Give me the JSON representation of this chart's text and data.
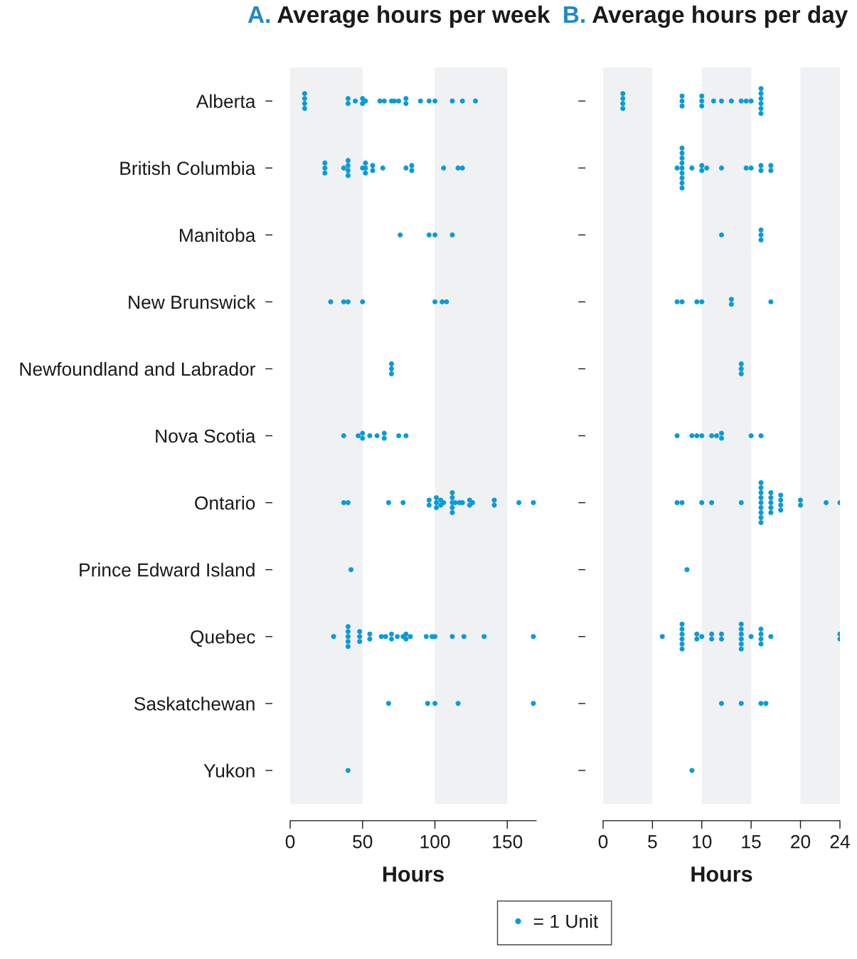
{
  "chart_data": [
    {
      "type": "scatter",
      "title": "A. Average hours per week",
      "xlabel": "Hours",
      "orientation": "horizontal",
      "categories": [
        "Alberta",
        "British Columbia",
        "Manitoba",
        "New Brunswick",
        "Newfoundland and Labrador",
        "Nova Scotia",
        "Ontario",
        "Prince Edward Island",
        "Quebec",
        "Saskatchewan",
        "Yukon"
      ],
      "series": [
        {
          "name": "= 1 Unit",
          "color": "#0b9bd7",
          "x": [
            "Alberta",
            "Alberta",
            "Alberta",
            "Alberta",
            "Alberta",
            "Alberta",
            "Alberta",
            "Alberta",
            "Alberta",
            "Alberta",
            "Alberta",
            "Alberta",
            "Alberta",
            "Alberta",
            "Alberta",
            "Alberta",
            "Alberta",
            "Alberta",
            "Alberta",
            "Alberta",
            "Alberta",
            "Alberta",
            "Alberta",
            "British Columbia",
            "British Columbia",
            "British Columbia",
            "British Columbia",
            "British Columbia",
            "British Columbia",
            "British Columbia",
            "British Columbia",
            "British Columbia",
            "British Columbia",
            "British Columbia",
            "British Columbia",
            "British Columbia",
            "British Columbia",
            "British Columbia",
            "British Columbia",
            "British Columbia",
            "British Columbia",
            "British Columbia",
            "British Columbia",
            "British Columbia",
            "Manitoba",
            "Manitoba",
            "Manitoba",
            "Manitoba",
            "New Brunswick",
            "New Brunswick",
            "New Brunswick",
            "New Brunswick",
            "New Brunswick",
            "New Brunswick",
            "New Brunswick",
            "Newfoundland and Labrador",
            "Newfoundland and Labrador",
            "Newfoundland and Labrador",
            "Nova Scotia",
            "Nova Scotia",
            "Nova Scotia",
            "Nova Scotia",
            "Nova Scotia",
            "Nova Scotia",
            "Nova Scotia",
            "Nova Scotia",
            "Nova Scotia",
            "Nova Scotia",
            "Ontario",
            "Ontario",
            "Ontario",
            "Ontario",
            "Ontario",
            "Ontario",
            "Ontario",
            "Ontario",
            "Ontario",
            "Ontario",
            "Ontario",
            "Ontario",
            "Ontario",
            "Ontario",
            "Ontario",
            "Ontario",
            "Ontario",
            "Ontario",
            "Ontario",
            "Ontario",
            "Ontario",
            "Ontario",
            "Ontario",
            "Ontario",
            "Ontario",
            "Ontario",
            "Ontario",
            "Prince Edward Island",
            "Quebec",
            "Quebec",
            "Quebec",
            "Quebec",
            "Quebec",
            "Quebec",
            "Quebec",
            "Quebec",
            "Quebec",
            "Quebec",
            "Quebec",
            "Quebec",
            "Quebec",
            "Quebec",
            "Quebec",
            "Quebec",
            "Quebec",
            "Quebec",
            "Quebec",
            "Quebec",
            "Quebec",
            "Quebec",
            "Quebec",
            "Quebec",
            "Quebec",
            "Quebec",
            "Quebec",
            "Saskatchewan",
            "Saskatchewan",
            "Saskatchewan",
            "Saskatchewan",
            "Saskatchewan",
            "Yukon"
          ],
          "values": [
            10,
            10,
            10,
            10,
            40,
            40,
            45,
            50,
            50,
            52,
            62,
            65,
            70,
            72,
            75,
            80,
            80,
            90,
            96,
            100,
            112,
            119,
            128,
            24,
            24,
            24,
            37,
            40,
            40,
            40,
            40,
            50,
            52,
            52,
            52,
            57,
            57,
            64,
            80,
            84,
            84,
            106,
            116,
            119,
            76,
            96,
            100,
            112,
            28,
            37,
            40,
            50,
            100,
            105,
            108,
            70,
            70,
            70,
            37,
            47,
            50,
            50,
            55,
            60,
            65,
            65,
            75,
            80,
            37,
            40,
            68,
            78,
            96,
            96,
            101,
            101,
            101,
            104,
            104,
            106,
            112,
            112,
            112,
            112,
            112,
            114,
            117,
            119,
            124,
            124,
            126,
            141,
            141,
            158,
            168,
            42,
            30,
            40,
            40,
            40,
            40,
            40,
            48,
            48,
            48,
            55,
            55,
            63,
            66,
            70,
            70,
            74,
            78,
            80,
            80,
            83,
            94,
            98,
            100,
            112,
            120,
            134,
            168,
            68,
            95,
            100,
            116,
            168,
            40
          ]
        }
      ],
      "xlim": [
        0,
        170
      ],
      "xticks": [
        0,
        50,
        100,
        150
      ],
      "marker": "circle",
      "grid": false,
      "legend": "bottom",
      "bands": [
        {
          "axis": "x",
          "from": 0,
          "to": 50,
          "color": "#f0f1f3"
        },
        {
          "axis": "x",
          "from": 100,
          "to": 150,
          "color": "#f0f1f3"
        }
      ]
    },
    {
      "type": "scatter",
      "title": "B. Average hours per day",
      "xlabel": "Hours",
      "orientation": "horizontal",
      "tick_labels": "x",
      "categories": [
        "Alberta",
        "British Columbia",
        "Manitoba",
        "New Brunswick",
        "Newfoundland and Labrador",
        "Nova Scotia",
        "Ontario",
        "Prince Edward Island",
        "Quebec",
        "Saskatchewan",
        "Yukon"
      ],
      "series": [
        {
          "color": "#0b9bd7",
          "x": [
            "Alberta",
            "Alberta",
            "Alberta",
            "Alberta",
            "Alberta",
            "Alberta",
            "Alberta",
            "Alberta",
            "Alberta",
            "Alberta",
            "Alberta",
            "Alberta",
            "Alberta",
            "Alberta",
            "Alberta",
            "Alberta",
            "Alberta",
            "Alberta",
            "Alberta",
            "Alberta",
            "Alberta",
            "Alberta",
            "British Columbia",
            "British Columbia",
            "British Columbia",
            "British Columbia",
            "British Columbia",
            "British Columbia",
            "British Columbia",
            "British Columbia",
            "British Columbia",
            "British Columbia",
            "British Columbia",
            "British Columbia",
            "British Columbia",
            "British Columbia",
            "British Columbia",
            "British Columbia",
            "British Columbia",
            "British Columbia",
            "British Columbia",
            "British Columbia",
            "British Columbia",
            "Manitoba",
            "Manitoba",
            "Manitoba",
            "Manitoba",
            "New Brunswick",
            "New Brunswick",
            "New Brunswick",
            "New Brunswick",
            "New Brunswick",
            "New Brunswick",
            "New Brunswick",
            "Newfoundland and Labrador",
            "Newfoundland and Labrador",
            "Newfoundland and Labrador",
            "Nova Scotia",
            "Nova Scotia",
            "Nova Scotia",
            "Nova Scotia",
            "Nova Scotia",
            "Nova Scotia",
            "Nova Scotia",
            "Nova Scotia",
            "Nova Scotia",
            "Nova Scotia",
            "Ontario",
            "Ontario",
            "Ontario",
            "Ontario",
            "Ontario",
            "Ontario",
            "Ontario",
            "Ontario",
            "Ontario",
            "Ontario",
            "Ontario",
            "Ontario",
            "Ontario",
            "Ontario",
            "Ontario",
            "Ontario",
            "Ontario",
            "Ontario",
            "Ontario",
            "Ontario",
            "Ontario",
            "Ontario",
            "Ontario",
            "Ontario",
            "Ontario",
            "Ontario",
            "Ontario",
            "Prince Edward Island",
            "Quebec",
            "Quebec",
            "Quebec",
            "Quebec",
            "Quebec",
            "Quebec",
            "Quebec",
            "Quebec",
            "Quebec",
            "Quebec",
            "Quebec",
            "Quebec",
            "Quebec",
            "Quebec",
            "Quebec",
            "Quebec",
            "Quebec",
            "Quebec",
            "Quebec",
            "Quebec",
            "Quebec",
            "Quebec",
            "Quebec",
            "Quebec",
            "Quebec",
            "Quebec",
            "Quebec",
            "Quebec",
            "Saskatchewan",
            "Saskatchewan",
            "Saskatchewan",
            "Saskatchewan",
            "Yukon"
          ],
          "values": [
            2,
            2,
            2,
            2,
            8,
            8,
            8,
            10,
            10,
            10,
            11.2,
            12,
            13,
            14,
            14.5,
            15,
            16,
            16,
            16,
            16,
            16,
            16,
            7.5,
            8,
            8,
            8,
            8,
            8,
            8,
            8,
            8,
            8,
            9,
            10,
            10,
            10.5,
            12,
            14.5,
            15,
            16,
            16,
            17,
            17,
            12,
            16,
            16,
            16,
            7.5,
            8,
            9.5,
            10,
            13,
            13,
            17,
            14,
            14,
            14,
            7.5,
            9,
            9.5,
            10,
            11,
            11.5,
            12,
            12,
            15,
            16,
            7.5,
            8,
            10,
            11,
            14,
            16,
            16,
            16,
            16,
            16,
            16,
            16,
            16,
            16,
            17,
            17,
            17,
            17,
            17,
            18,
            18,
            18,
            18,
            20,
            20,
            22.6,
            24,
            8.5,
            6,
            8,
            8,
            8,
            8,
            8,
            8,
            9.5,
            9.5,
            10,
            11,
            11,
            12,
            12,
            14,
            14,
            14,
            14,
            14,
            14,
            15,
            16,
            16,
            16,
            16,
            17,
            24,
            24,
            12,
            14,
            16,
            16.5,
            9
          ]
        }
      ],
      "xlim": [
        0,
        24
      ],
      "xticks": [
        0,
        5,
        10,
        15,
        20,
        24
      ],
      "marker": "circle",
      "grid": false,
      "bands": [
        {
          "axis": "x",
          "from": 0,
          "to": 5,
          "color": "#f0f1f3"
        },
        {
          "axis": "x",
          "from": 10,
          "to": 15,
          "color": "#f0f1f3"
        },
        {
          "axis": "x",
          "from": 20,
          "to": 24,
          "color": "#f0f1f3"
        }
      ]
    }
  ]
}
